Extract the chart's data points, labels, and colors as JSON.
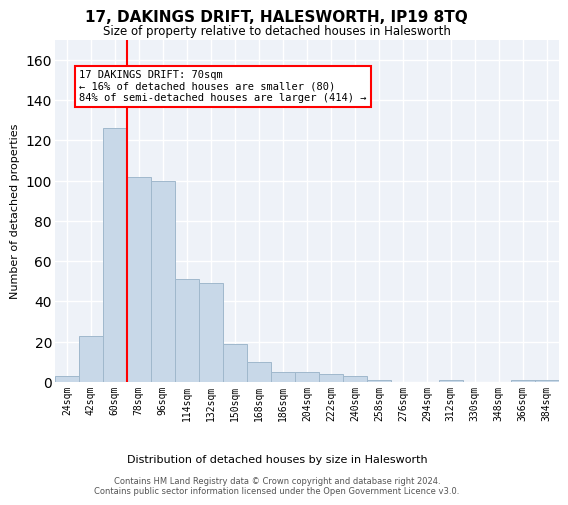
{
  "title": "17, DAKINGS DRIFT, HALESWORTH, IP19 8TQ",
  "subtitle": "Size of property relative to detached houses in Halesworth",
  "xlabel": "Distribution of detached houses by size in Halesworth",
  "ylabel": "Number of detached properties",
  "bar_color": "#c8d8e8",
  "bar_edge_color": "#a0b8cc",
  "background_color": "#eef2f8",
  "grid_color": "#ffffff",
  "categories": [
    "24sqm",
    "42sqm",
    "60sqm",
    "78sqm",
    "96sqm",
    "114sqm",
    "132sqm",
    "150sqm",
    "168sqm",
    "186sqm",
    "204sqm",
    "222sqm",
    "240sqm",
    "258sqm",
    "276sqm",
    "294sqm",
    "312sqm",
    "330sqm",
    "348sqm",
    "366sqm",
    "384sqm"
  ],
  "values": [
    3,
    23,
    126,
    102,
    100,
    51,
    49,
    19,
    10,
    5,
    5,
    4,
    3,
    1,
    0,
    0,
    1,
    0,
    0,
    1,
    1
  ],
  "ylim": [
    0,
    170
  ],
  "yticks": [
    0,
    20,
    40,
    60,
    80,
    100,
    120,
    140,
    160
  ],
  "property_label": "17 DAKINGS DRIFT: 70sqm",
  "annotation_line1": "← 16% of detached houses are smaller (80)",
  "annotation_line2": "84% of semi-detached houses are larger (414) →",
  "vline_x": 2.5,
  "footer1": "Contains HM Land Registry data © Crown copyright and database right 2024.",
  "footer2": "Contains public sector information licensed under the Open Government Licence v3.0."
}
